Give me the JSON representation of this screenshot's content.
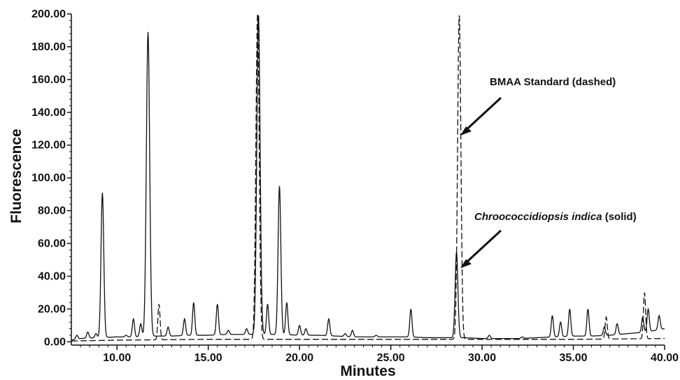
{
  "chart_data": {
    "type": "line",
    "xlabel": "Minutes",
    "ylabel": "Fluorescence",
    "xlim": [
      7.5,
      40.0
    ],
    "ylim": [
      -2,
      200
    ],
    "x_ticks": [
      "10.00",
      "15.00",
      "20.00",
      "25.00",
      "30.00",
      "35.00",
      "40.00"
    ],
    "y_ticks": [
      "0.00",
      "20.00",
      "40.00",
      "60.00",
      "80.00",
      "100.00",
      "120.00",
      "140.00",
      "160.00",
      "180.00",
      "200.00"
    ],
    "grid": false,
    "legend": "none",
    "series": [
      {
        "name": "Chroococcidiopsis indica (solid)",
        "style": "solid",
        "color": "#111111",
        "baseline": [
          [
            7.5,
            1
          ],
          [
            8,
            2
          ],
          [
            9,
            2.5
          ],
          [
            10,
            3
          ],
          [
            11,
            3
          ],
          [
            12,
            3.5
          ],
          [
            13,
            3.5
          ],
          [
            14,
            4
          ],
          [
            15,
            4
          ],
          [
            16,
            4.5
          ],
          [
            17,
            4.5
          ],
          [
            18,
            4.5
          ],
          [
            19,
            4.5
          ],
          [
            20,
            4
          ],
          [
            21,
            4
          ],
          [
            22,
            3.5
          ],
          [
            23,
            3
          ],
          [
            24,
            3
          ],
          [
            25,
            3
          ],
          [
            26,
            3
          ],
          [
            27,
            2.5
          ],
          [
            28,
            2.5
          ],
          [
            29,
            2.5
          ],
          [
            30,
            2
          ],
          [
            31,
            2
          ],
          [
            32,
            2
          ],
          [
            33,
            2.5
          ],
          [
            34,
            3
          ],
          [
            35,
            3.5
          ],
          [
            36,
            3.5
          ],
          [
            37,
            4
          ],
          [
            38,
            5
          ],
          [
            39,
            6
          ],
          [
            40,
            8
          ]
        ],
        "peaks": [
          {
            "x": 7.8,
            "y": 4
          },
          {
            "x": 8.4,
            "y": 6
          },
          {
            "x": 8.85,
            "y": 5
          },
          {
            "x": 9.2,
            "y": 91
          },
          {
            "x": 10.5,
            "y": 4
          },
          {
            "x": 10.9,
            "y": 14
          },
          {
            "x": 11.3,
            "y": 11
          },
          {
            "x": 11.7,
            "y": 189
          },
          {
            "x": 12.8,
            "y": 9
          },
          {
            "x": 13.7,
            "y": 14
          },
          {
            "x": 14.2,
            "y": 24
          },
          {
            "x": 15.5,
            "y": 23
          },
          {
            "x": 16.1,
            "y": 7
          },
          {
            "x": 17.1,
            "y": 8
          },
          {
            "x": 17.75,
            "y": 200
          },
          {
            "x": 18.25,
            "y": 23
          },
          {
            "x": 18.9,
            "y": 95
          },
          {
            "x": 19.3,
            "y": 24
          },
          {
            "x": 20.0,
            "y": 10
          },
          {
            "x": 20.35,
            "y": 8
          },
          {
            "x": 21.6,
            "y": 14
          },
          {
            "x": 22.5,
            "y": 5
          },
          {
            "x": 22.9,
            "y": 7
          },
          {
            "x": 24.2,
            "y": 4
          },
          {
            "x": 26.1,
            "y": 20
          },
          {
            "x": 28.6,
            "y": 55
          },
          {
            "x": 30.4,
            "y": 4
          },
          {
            "x": 32.2,
            "y": 3
          },
          {
            "x": 33.85,
            "y": 16
          },
          {
            "x": 34.3,
            "y": 12
          },
          {
            "x": 34.8,
            "y": 20
          },
          {
            "x": 35.8,
            "y": 20
          },
          {
            "x": 36.7,
            "y": 9
          },
          {
            "x": 37.4,
            "y": 11
          },
          {
            "x": 38.8,
            "y": 15
          },
          {
            "x": 39.1,
            "y": 20
          },
          {
            "x": 39.7,
            "y": 16
          }
        ]
      },
      {
        "name": "BMAA Standard (dashed)",
        "style": "dashed",
        "color": "#111111",
        "baseline": [
          [
            7.5,
            0.5
          ],
          [
            10,
            1
          ],
          [
            15,
            1.5
          ],
          [
            20,
            1.5
          ],
          [
            25,
            1.5
          ],
          [
            30,
            1.5
          ],
          [
            35,
            1.5
          ],
          [
            40,
            2
          ]
        ],
        "peaks": [
          {
            "x": 12.3,
            "y": 23
          },
          {
            "x": 17.7,
            "y": 200
          },
          {
            "x": 28.75,
            "y": 200
          },
          {
            "x": 36.8,
            "y": 15
          },
          {
            "x": 38.9,
            "y": 30
          }
        ]
      }
    ],
    "annotations": [
      {
        "text": "BMAA Standard (dashed)",
        "italic_part": "",
        "plain_part": "BMAA Standard (dashed)",
        "x": 28.85,
        "y": 125
      },
      {
        "text": "Chroococcidiopsis indica (solid)",
        "italic_part": "Chroococcidiopsis indica",
        "plain_part": " (solid)",
        "x": 28.85,
        "y": 47
      }
    ]
  }
}
